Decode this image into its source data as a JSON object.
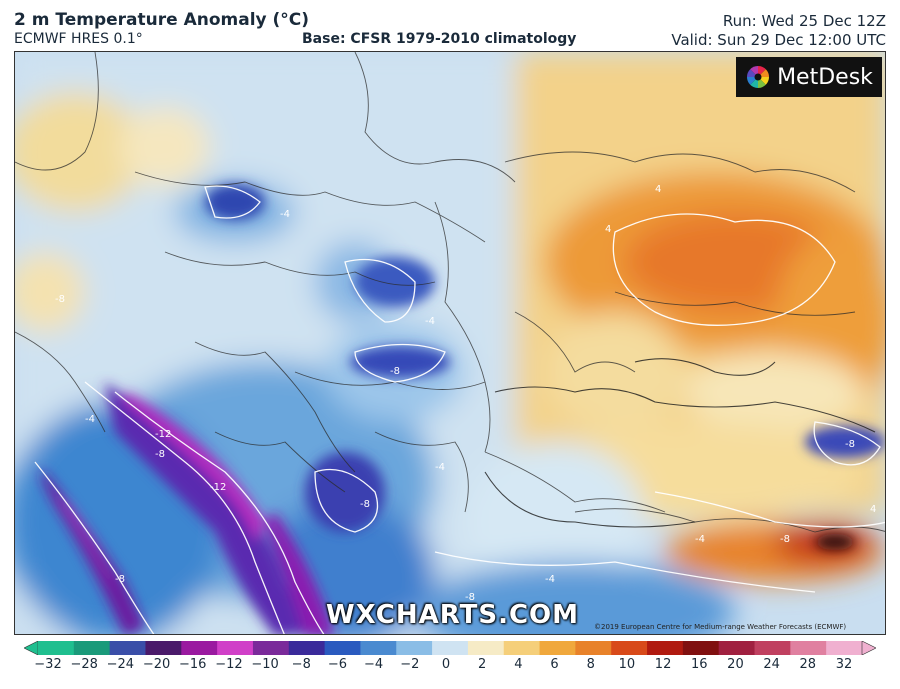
{
  "header": {
    "title": "2 m Temperature Anomaly (°C)",
    "model": "ECMWF HRES 0.1°",
    "base": "Base: CFSR 1979-2010 climatology",
    "run": "Run: Wed 25 Dec 12Z",
    "valid": "Valid: Sun 29 Dec 12:00 UTC"
  },
  "branding": {
    "logo_text": "MetDesk",
    "watermark": "WXCHARTS.COM",
    "copyright": "©2019 European Centre for Medium-range Weather Forecasts (ECMWF)"
  },
  "map": {
    "contour_labels": [
      "-4",
      "-8",
      "-12",
      "-8",
      "-12",
      "-8",
      "-8",
      "-8",
      "-4",
      "-4",
      "4",
      "4",
      "4",
      "-4",
      "-8",
      "-8",
      "-8",
      "-4",
      "-4"
    ]
  },
  "legend": {
    "ticks": [
      "−32",
      "−28",
      "−24",
      "−20",
      "−16",
      "−12",
      "−10",
      "−8",
      "−6",
      "−4",
      "−2",
      "0",
      "2",
      "4",
      "6",
      "8",
      "10",
      "12",
      "16",
      "20",
      "24",
      "28",
      "32"
    ],
    "colors": [
      "#1fbf8f",
      "#1a9a7a",
      "#3a4ea8",
      "#4a1a6a",
      "#9a1aa0",
      "#d040c8",
      "#7a2a9a",
      "#3a2a9a",
      "#2a5abf",
      "#4a8ad0",
      "#8abde6",
      "#cfe3f2",
      "#f6ebc6",
      "#f5cf7a",
      "#f0a83c",
      "#e8822a",
      "#d84a1a",
      "#b01a10",
      "#801010",
      "#a02040",
      "#c04060",
      "#e080a0",
      "#f0b0d0"
    ]
  }
}
